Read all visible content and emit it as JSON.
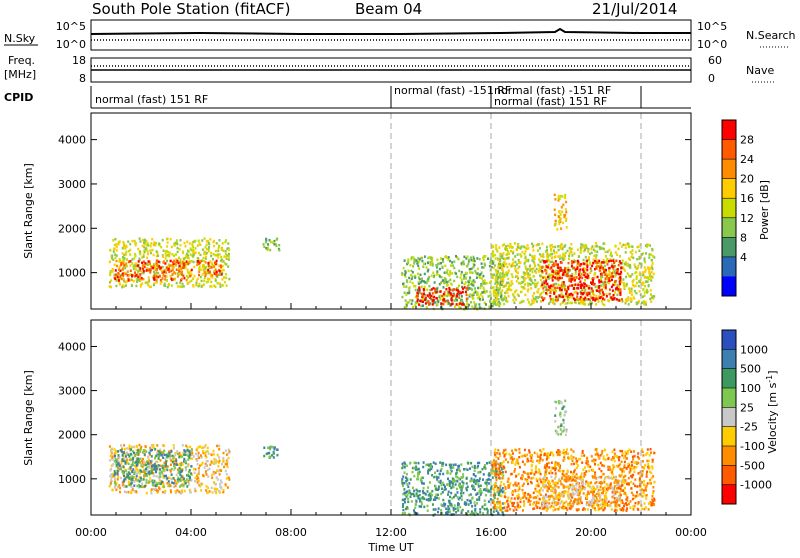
{
  "header": {
    "station": "South Pole Station (fitACF)",
    "beam": "Beam 04",
    "date": "21/Jul/2014"
  },
  "noise_panel": {
    "left_label": "N.Sky",
    "left_ticks": [
      "10^5",
      "10^0"
    ],
    "right_label": "N.Search",
    "right_ticks": [
      "10^5",
      "10^0"
    ]
  },
  "freq_panel": {
    "left_label_1": "Freq.",
    "left_label_2": "[MHz]",
    "left_ticks": [
      "18",
      "8"
    ],
    "right_label": "Nave",
    "right_ticks": [
      "60",
      "0"
    ]
  },
  "cpid_panel": {
    "label": "CPID",
    "modes": [
      {
        "text": "normal (fast) 151 RF",
        "t": 0.0
      },
      {
        "text": "normal (fast) -151 RF",
        "t": 12.0
      },
      {
        "text": "normal (fast) -151 RF",
        "t": 16.0
      },
      {
        "text": "normal (fast) 151 RF",
        "t": 16.0
      }
    ]
  },
  "chart_data": [
    {
      "type": "heatmap",
      "name": "power",
      "xlabel": "",
      "ylabel": "Slant Range [km]",
      "xlim": [
        0,
        24
      ],
      "ylim": [
        180,
        4600
      ],
      "yticks": [
        "1000",
        "2000",
        "3000",
        "4000"
      ],
      "colorbar": {
        "label": "Power [dB]",
        "ticks": [
          "28",
          "24",
          "20",
          "16",
          "12",
          "8",
          "4"
        ],
        "colors": [
          "#ff0000",
          "#ff5a00",
          "#ff8c00",
          "#ffcc00",
          "#c8dc00",
          "#88c84c",
          "#4a9a68",
          "#2a68b8",
          "#0000ff"
        ]
      },
      "mode_change_times": [
        12.0,
        16.0,
        22.0
      ],
      "blobs": [
        {
          "t0": 0.7,
          "t1": 5.5,
          "r0": 700,
          "r1": 1800,
          "level": 4
        },
        {
          "t0": 0.9,
          "t1": 4.0,
          "r0": 850,
          "r1": 1300,
          "level": 7
        },
        {
          "t0": 4.2,
          "t1": 5.2,
          "r0": 950,
          "r1": 1300,
          "level": 7
        },
        {
          "t0": 6.8,
          "t1": 7.5,
          "r0": 1500,
          "r1": 1800,
          "level": 3
        },
        {
          "t0": 12.4,
          "t1": 16.5,
          "r0": 200,
          "r1": 1400,
          "level": 3
        },
        {
          "t0": 13.0,
          "t1": 15.0,
          "r0": 300,
          "r1": 700,
          "level": 8
        },
        {
          "t0": 16.0,
          "t1": 22.5,
          "r0": 300,
          "r1": 1700,
          "level": 4
        },
        {
          "t0": 18.0,
          "t1": 21.2,
          "r0": 400,
          "r1": 1300,
          "level": 8
        },
        {
          "t0": 18.5,
          "t1": 19.0,
          "r0": 2000,
          "r1": 2800,
          "level": 5
        }
      ]
    },
    {
      "type": "heatmap",
      "name": "velocity",
      "xlabel": "Time UT",
      "ylabel": "Slant Range [km]",
      "xlim": [
        0,
        24
      ],
      "ylim": [
        180,
        4600
      ],
      "xticks": [
        "00:00",
        "04:00",
        "08:00",
        "12:00",
        "16:00",
        "20:00",
        "00:00"
      ],
      "yticks": [
        "1000",
        "2000",
        "3000",
        "4000"
      ],
      "colorbar": {
        "label": "Velocity [m s^-1]",
        "ticks": [
          "1000",
          "500",
          "100",
          "25",
          "-25",
          "-100",
          "-500",
          "-1000"
        ],
        "colors": [
          "#2a4fbf",
          "#3c7fb0",
          "#3c9a60",
          "#7cc850",
          "#c8c8c8",
          "#ffcc00",
          "#ff8c00",
          "#ff5a00",
          "#ff0000"
        ]
      },
      "mode_change_times": [
        12.0,
        16.0,
        22.0
      ],
      "blobs": [
        {
          "t0": 0.7,
          "t1": 5.5,
          "r0": 700,
          "r1": 1800,
          "level": 3
        },
        {
          "t0": 0.9,
          "t1": 4.0,
          "r0": 850,
          "r1": 1700,
          "level": 6
        },
        {
          "t0": 6.8,
          "t1": 7.5,
          "r0": 1500,
          "r1": 1800,
          "level": 6
        },
        {
          "t0": 12.4,
          "t1": 16.5,
          "r0": 200,
          "r1": 1400,
          "level": 6
        },
        {
          "t0": 16.0,
          "t1": 22.5,
          "r0": 300,
          "r1": 1700,
          "level": 2
        },
        {
          "t0": 18.0,
          "t1": 21.2,
          "r0": 400,
          "r1": 1100,
          "level": 3
        },
        {
          "t0": 18.5,
          "t1": 19.0,
          "r0": 2000,
          "r1": 2800,
          "level": 5
        }
      ]
    }
  ]
}
